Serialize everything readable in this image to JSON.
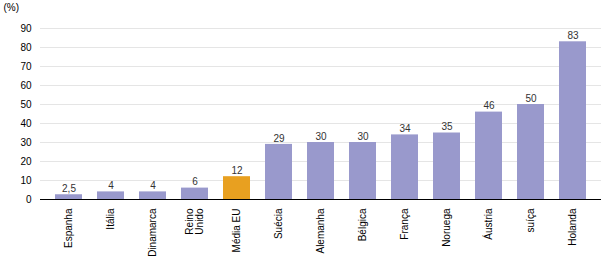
{
  "chart_data": {
    "type": "bar",
    "categories": [
      "Espanha",
      "Itália",
      "Dinamarca",
      "Reino\nUnido",
      "Média EU",
      "Suécia",
      "Alemanha",
      "Bélgica",
      "França",
      "Noruega",
      "Áustria",
      "suíça",
      "Holanda"
    ],
    "values": [
      2.5,
      4,
      4,
      6,
      12,
      29,
      30,
      30,
      34,
      35,
      46,
      50,
      83
    ],
    "value_labels": [
      "2,5",
      "4",
      "4",
      "6",
      "12",
      "29",
      "30",
      "30",
      "34",
      "35",
      "46",
      "50",
      "83"
    ],
    "colors": [
      "#9999cc",
      "#9999cc",
      "#9999cc",
      "#9999cc",
      "#e8a020",
      "#9999cc",
      "#9999cc",
      "#9999cc",
      "#9999cc",
      "#9999cc",
      "#9999cc",
      "#9999cc",
      "#9999cc"
    ],
    "ylabel": "(%)",
    "ylim": [
      0,
      90
    ],
    "yticks": [
      0,
      10,
      20,
      30,
      40,
      50,
      60,
      70,
      80,
      90
    ],
    "grid": true,
    "data_labels": true
  }
}
